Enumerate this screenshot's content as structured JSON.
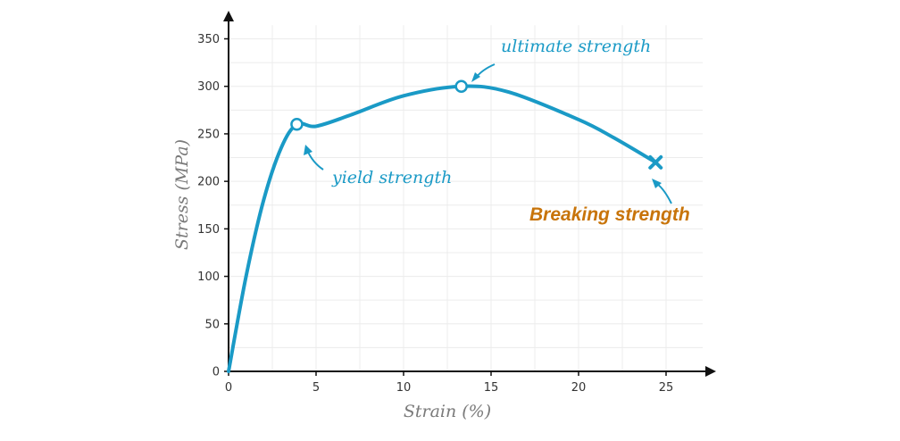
{
  "chart_data": {
    "type": "line",
    "xlabel": "Strain (%)",
    "ylabel": "Stress (MPa)",
    "xlim": [
      0,
      27.5
    ],
    "ylim": [
      0,
      370
    ],
    "xticks": [
      "0",
      "5",
      "10",
      "15",
      "20",
      "25"
    ],
    "yticks": [
      "0",
      "50",
      "100",
      "150",
      "200",
      "250",
      "300",
      "350"
    ],
    "grid": true,
    "series": [
      {
        "color": "#1a9ac6",
        "points": [
          [
            0,
            0
          ],
          [
            1,
            100
          ],
          [
            2,
            180
          ],
          [
            3,
            235
          ],
          [
            3.9,
            260
          ],
          [
            5,
            258
          ],
          [
            7,
            270
          ],
          [
            10,
            290
          ],
          [
            13.3,
            300
          ],
          [
            16,
            294
          ],
          [
            20,
            265
          ],
          [
            22,
            246
          ],
          [
            24.4,
            220
          ]
        ]
      }
    ],
    "annotations": [
      {
        "label": "yield strength",
        "x": 3.9,
        "y": 260,
        "marker": "circle",
        "color": "#1a9ac6"
      },
      {
        "label": "ultimate strength",
        "x": 13.3,
        "y": 300,
        "marker": "circle",
        "color": "#1a9ac6"
      },
      {
        "label": "Breaking strength",
        "x": 24.4,
        "y": 220,
        "marker": "x",
        "color": "#c8740a"
      }
    ]
  }
}
